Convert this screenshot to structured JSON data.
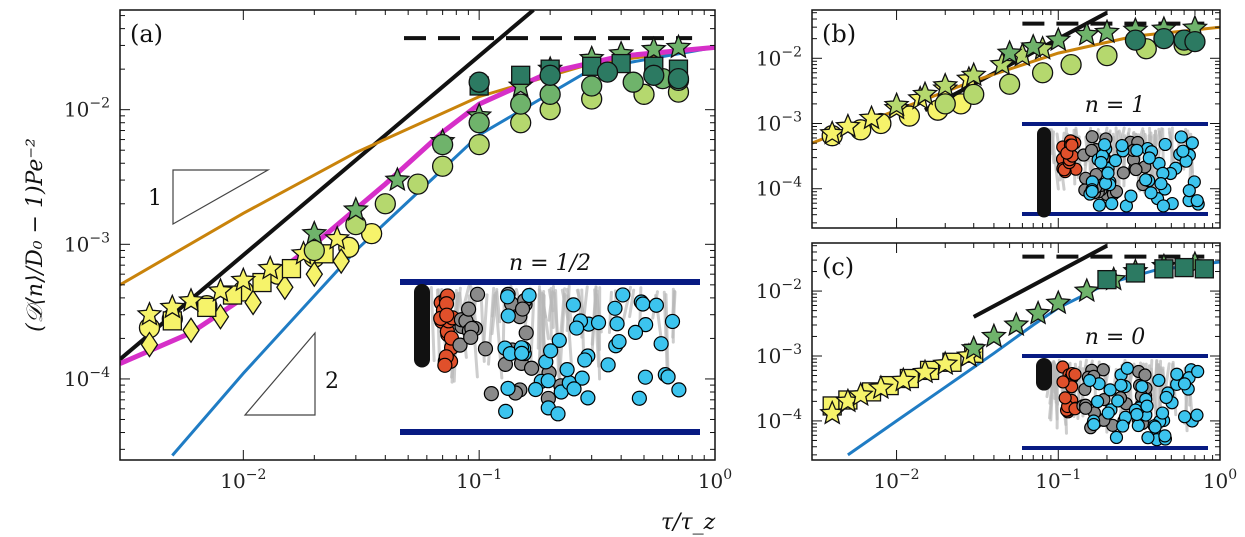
{
  "colors": {
    "black_line": "#111111",
    "orange_line": "#c9830b",
    "blue_line": "#1f7cc4",
    "magenta_line": "#d62fc8",
    "dashed_line": "#111111",
    "marker_yellow": "#f6f36a",
    "marker_light_green": "#b5d86e",
    "marker_green": "#6fb36b",
    "marker_teal": "#2c7a62",
    "inset_wall": "#071a82",
    "inset_black": "#111111",
    "inset_red": "#e0502b",
    "inset_gray": "#8a8a8a",
    "inset_cyan": "#3cc4ee",
    "inset_trace": "#b8b8b8"
  },
  "shared": {
    "xlabel": "τ/τ_z",
    "ylabel": "(𝒟⟨n⟩/D₀ − 1)Pe⁻²"
  },
  "chart_data": [
    {
      "panel": "(a)",
      "type": "scatter",
      "xscale": "log",
      "yscale": "log",
      "xlim": [
        0.003,
        1.0
      ],
      "ylim": [
        2.5e-05,
        0.055
      ],
      "x_ticks": [
        0.01,
        0.1,
        1.0
      ],
      "x_tick_labels": [
        "10^-2",
        "10^-1",
        "10^0"
      ],
      "y_ticks": [
        0.0001,
        0.001,
        0.01
      ],
      "y_tick_labels": [
        "10^-4",
        "10^-3",
        "10^-2"
      ],
      "inset_label": "n = 1/2",
      "slope_labels": [
        "1",
        "2"
      ],
      "lines": [
        {
          "style": "dashed",
          "color": "black",
          "x": [
            0.048,
            0.8
          ],
          "y": [
            0.034,
            0.034
          ]
        },
        {
          "style": "solid",
          "color": "black",
          "x": [
            0.003,
            0.17
          ],
          "y": [
            0.00014,
            0.055
          ]
        },
        {
          "style": "solid",
          "color": "orange",
          "x": [
            0.003,
            0.01,
            0.03,
            0.1,
            0.3,
            1.0
          ],
          "y": [
            0.0005,
            0.0017,
            0.0048,
            0.0125,
            0.022,
            0.029
          ]
        },
        {
          "style": "solid",
          "color": "blue",
          "x": [
            0.005,
            0.01,
            0.03,
            0.06,
            0.1,
            0.3,
            1.0
          ],
          "y": [
            2.7e-05,
            0.00011,
            0.0009,
            0.0028,
            0.0065,
            0.02,
            0.029
          ]
        },
        {
          "style": "solid",
          "color": "magenta",
          "x": [
            0.003,
            0.006,
            0.01,
            0.02,
            0.04,
            0.07,
            0.1,
            0.2,
            0.4,
            1.0
          ],
          "y": [
            0.00013,
            0.00022,
            0.0004,
            0.001,
            0.0028,
            0.0068,
            0.011,
            0.019,
            0.025,
            0.029
          ]
        }
      ],
      "series": [
        {
          "marker": "circle",
          "color": "yellow",
          "x": [
            0.004,
            0.005,
            0.007,
            0.01,
            0.014,
            0.02,
            0.028,
            0.035
          ],
          "y": [
            0.00024,
            0.00028,
            0.00035,
            0.00045,
            0.0006,
            0.0008,
            0.00095,
            0.0012
          ]
        },
        {
          "marker": "diamond",
          "color": "yellow",
          "x": [
            0.004,
            0.006,
            0.008,
            0.011,
            0.015,
            0.02,
            0.026
          ],
          "y": [
            0.00018,
            0.00023,
            0.00029,
            0.00037,
            0.00048,
            0.0006,
            0.00075
          ]
        },
        {
          "marker": "square",
          "color": "yellow",
          "x": [
            0.005,
            0.007,
            0.009,
            0.012,
            0.016,
            0.022
          ],
          "y": [
            0.00027,
            0.00034,
            0.00042,
            0.00052,
            0.00066,
            0.00085
          ]
        },
        {
          "marker": "star",
          "color": "yellow",
          "x": [
            0.004,
            0.005,
            0.006,
            0.008,
            0.01,
            0.013,
            0.018,
            0.025
          ],
          "y": [
            0.0003,
            0.00034,
            0.00038,
            0.00045,
            0.00054,
            0.00066,
            0.00085,
            0.0011
          ]
        },
        {
          "marker": "circle",
          "color": "lightgreen",
          "x": [
            0.02,
            0.03,
            0.04,
            0.055,
            0.07,
            0.1,
            0.15,
            0.2,
            0.3,
            0.5,
            0.7
          ],
          "y": [
            0.0009,
            0.0014,
            0.002,
            0.0028,
            0.0038,
            0.0055,
            0.008,
            0.01,
            0.012,
            0.013,
            0.0135
          ]
        },
        {
          "marker": "star",
          "color": "green",
          "x": [
            0.02,
            0.03,
            0.045,
            0.07,
            0.1,
            0.15,
            0.2,
            0.3,
            0.4,
            0.55,
            0.7
          ],
          "y": [
            0.0012,
            0.0018,
            0.003,
            0.0058,
            0.009,
            0.015,
            0.02,
            0.024,
            0.026,
            0.028,
            0.029
          ]
        },
        {
          "marker": "circle",
          "color": "green",
          "x": [
            0.07,
            0.1,
            0.15,
            0.2,
            0.3,
            0.45,
            0.6,
            0.7
          ],
          "y": [
            0.0055,
            0.008,
            0.011,
            0.013,
            0.015,
            0.016,
            0.017,
            0.0165
          ]
        },
        {
          "marker": "square",
          "color": "teal",
          "x": [
            0.1,
            0.15,
            0.2,
            0.3,
            0.4,
            0.55,
            0.7
          ],
          "y": [
            0.015,
            0.018,
            0.02,
            0.021,
            0.022,
            0.021,
            0.02
          ]
        },
        {
          "marker": "circle",
          "color": "teal",
          "x": [
            0.1,
            0.2,
            0.35,
            0.55,
            0.7
          ],
          "y": [
            0.016,
            0.018,
            0.019,
            0.018,
            0.017
          ]
        }
      ]
    },
    {
      "panel": "(b)",
      "type": "scatter",
      "xscale": "log",
      "yscale": "log",
      "xlim": [
        0.003,
        1.0
      ],
      "ylim": [
        2.5e-05,
        0.055
      ],
      "x_ticks": [
        0.01,
        0.1,
        1.0
      ],
      "x_tick_labels": [],
      "y_ticks": [
        0.0001,
        0.001,
        0.01
      ],
      "y_tick_labels": [
        "10^-4",
        "10^-3",
        "10^-2"
      ],
      "inset_label": "n = 1",
      "lines": [
        {
          "style": "dashed",
          "color": "black",
          "x": [
            0.06,
            0.8
          ],
          "y": [
            0.034,
            0.034
          ]
        },
        {
          "style": "solid",
          "color": "black",
          "x": [
            0.015,
            0.2
          ],
          "y": [
            0.0016,
            0.05
          ]
        },
        {
          "style": "solid",
          "color": "orange",
          "x": [
            0.003,
            0.01,
            0.03,
            0.1,
            0.3,
            1.0
          ],
          "y": [
            0.0005,
            0.0016,
            0.0045,
            0.012,
            0.022,
            0.03
          ]
        }
      ],
      "series": [
        {
          "marker": "circle",
          "color": "yellow",
          "x": [
            0.004,
            0.006,
            0.008,
            0.012,
            0.018,
            0.025
          ],
          "y": [
            0.00065,
            0.0008,
            0.001,
            0.0013,
            0.0016,
            0.002
          ]
        },
        {
          "marker": "star",
          "color": "yellow",
          "x": [
            0.004,
            0.005,
            0.007,
            0.01,
            0.014,
            0.02,
            0.028
          ],
          "y": [
            0.0007,
            0.0009,
            0.0012,
            0.0017,
            0.0024,
            0.0034,
            0.0048
          ]
        },
        {
          "marker": "star",
          "color": "lightgreen",
          "x": [
            0.01,
            0.015,
            0.02,
            0.03,
            0.045,
            0.06,
            0.08
          ],
          "y": [
            0.0019,
            0.0028,
            0.0038,
            0.0055,
            0.008,
            0.011,
            0.014
          ]
        },
        {
          "marker": "circle",
          "color": "lightgreen",
          "x": [
            0.02,
            0.03,
            0.05,
            0.08,
            0.12,
            0.2,
            0.35,
            0.6
          ],
          "y": [
            0.002,
            0.0028,
            0.004,
            0.006,
            0.008,
            0.011,
            0.014,
            0.016
          ]
        },
        {
          "marker": "star",
          "color": "green",
          "x": [
            0.05,
            0.07,
            0.1,
            0.15,
            0.2,
            0.3,
            0.45,
            0.7
          ],
          "y": [
            0.012,
            0.015,
            0.019,
            0.023,
            0.025,
            0.027,
            0.028,
            0.029
          ]
        },
        {
          "marker": "circle",
          "color": "teal",
          "x": [
            0.3,
            0.45,
            0.6,
            0.7
          ],
          "y": [
            0.019,
            0.02,
            0.019,
            0.018
          ]
        }
      ]
    },
    {
      "panel": "(c)",
      "type": "scatter",
      "xscale": "log",
      "yscale": "log",
      "xlim": [
        0.003,
        1.0
      ],
      "ylim": [
        2.5e-05,
        0.055
      ],
      "x_ticks": [
        0.01,
        0.1,
        1.0
      ],
      "x_tick_labels": [
        "10^-2",
        "10^-1",
        "10^0"
      ],
      "y_ticks": [
        0.0001,
        0.001,
        0.01
      ],
      "y_tick_labels": [
        "10^-4",
        "10^-3",
        "10^-2"
      ],
      "inset_label": "n = 0",
      "lines": [
        {
          "style": "dashed",
          "color": "black",
          "x": [
            0.06,
            0.8
          ],
          "y": [
            0.034,
            0.034
          ]
        },
        {
          "style": "solid",
          "color": "black",
          "x": [
            0.03,
            0.2
          ],
          "y": [
            0.004,
            0.05
          ]
        },
        {
          "style": "solid",
          "color": "blue",
          "x": [
            0.005,
            0.01,
            0.02,
            0.04,
            0.07,
            0.1,
            0.2,
            0.4,
            1.0
          ],
          "y": [
            3e-05,
            0.0001,
            0.00033,
            0.0011,
            0.003,
            0.0055,
            0.013,
            0.021,
            0.028
          ]
        }
      ],
      "series": [
        {
          "marker": "square",
          "color": "yellow",
          "x": [
            0.004,
            0.005,
            0.007,
            0.009,
            0.012,
            0.016,
            0.022,
            0.03
          ],
          "y": [
            0.00017,
            0.00021,
            0.00028,
            0.00035,
            0.00045,
            0.0006,
            0.0008,
            0.0011
          ]
        },
        {
          "marker": "star",
          "color": "yellow",
          "x": [
            0.004,
            0.005,
            0.006,
            0.008,
            0.011,
            0.015,
            0.02,
            0.028
          ],
          "y": [
            0.00013,
            0.0002,
            0.00025,
            0.00032,
            0.00042,
            0.00056,
            0.00075,
            0.001
          ]
        },
        {
          "marker": "star",
          "color": "green",
          "x": [
            0.03,
            0.04,
            0.055,
            0.075,
            0.1,
            0.15,
            0.22,
            0.3,
            0.45,
            0.7
          ],
          "y": [
            0.0013,
            0.002,
            0.003,
            0.0045,
            0.0065,
            0.01,
            0.015,
            0.02,
            0.024,
            0.026
          ]
        },
        {
          "marker": "square",
          "color": "teal",
          "x": [
            0.2,
            0.3,
            0.45,
            0.6,
            0.8
          ],
          "y": [
            0.015,
            0.019,
            0.022,
            0.023,
            0.022
          ]
        }
      ]
    }
  ]
}
